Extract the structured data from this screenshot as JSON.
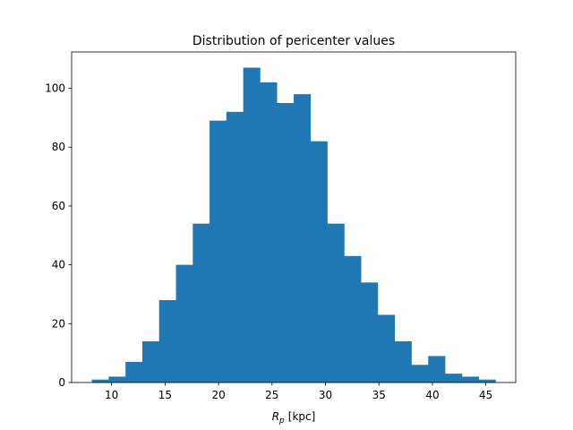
{
  "chart_data": {
    "type": "histogram",
    "title": "Distribution of pericenter values",
    "xlabel": [
      "R",
      "p",
      "[kpc]"
    ],
    "bins": [
      8.15,
      9.72,
      11.3,
      12.87,
      14.44,
      16.02,
      17.59,
      19.16,
      20.73,
      22.31,
      23.88,
      25.45,
      27.03,
      28.6,
      30.17,
      31.75,
      33.32,
      34.89,
      36.46,
      38.04,
      39.61,
      41.18,
      42.76,
      44.33,
      45.9
    ],
    "values": [
      1,
      2,
      7,
      14,
      28,
      40,
      54,
      89,
      92,
      107,
      102,
      95,
      98,
      82,
      54,
      43,
      34,
      23,
      14,
      6,
      9,
      3,
      2,
      1
    ],
    "color": "#1f77b4",
    "xlim": [
      6.26,
      47.79
    ],
    "xticks": [
      10,
      15,
      20,
      25,
      30,
      35,
      40,
      45
    ],
    "ylim": [
      0,
      112.35
    ],
    "yticks": [
      0,
      20,
      40,
      60,
      80,
      100
    ],
    "grid": false
  }
}
